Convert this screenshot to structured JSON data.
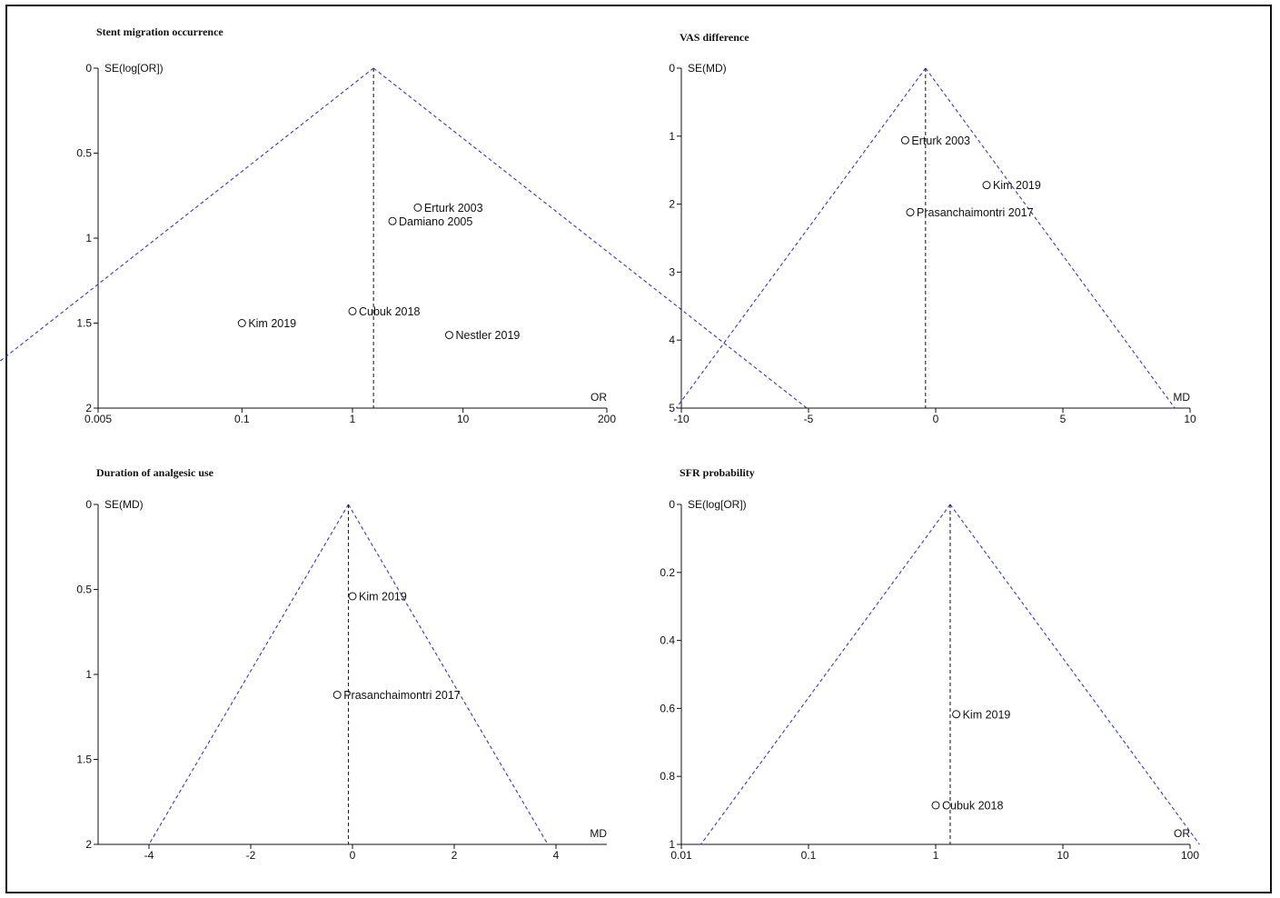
{
  "chart_data": [
    {
      "type": "scatter",
      "title": "Stent migration occurrence",
      "ylabel": "SE(log[OR])",
      "xlabel": "OR",
      "xscale": "log",
      "xlim": [
        0.005,
        200
      ],
      "ylim": [
        0,
        2
      ],
      "yinverted": true,
      "xticks": [
        "0.005",
        "0.1",
        "1",
        "10",
        "200"
      ],
      "xtick_values": [
        0.005,
        0.1,
        1,
        10,
        200
      ],
      "yticks": [
        "0",
        "0.5",
        "1",
        "1.5",
        "2"
      ],
      "ytick_values": [
        0,
        0.5,
        1,
        1.5,
        2
      ],
      "summary_effect": 1.55,
      "points": [
        {
          "label": "Erturk 2003",
          "x": 3.9,
          "y": 0.82
        },
        {
          "label": "Damiano 2005",
          "x": 2.3,
          "y": 0.9
        },
        {
          "label": "Cubuk 2018",
          "x": 1.0,
          "y": 1.43
        },
        {
          "label": "Kim 2019",
          "x": 0.1,
          "y": 1.5
        },
        {
          "label": "Nestler 2019",
          "x": 7.5,
          "y": 1.57
        }
      ],
      "colors": {
        "funnel": "#3a3ab4",
        "center": "#222222"
      }
    },
    {
      "type": "scatter",
      "title": "VAS difference",
      "ylabel": "SE(MD)",
      "xlabel": "MD",
      "xscale": "linear",
      "xlim": [
        -10,
        10
      ],
      "ylim": [
        0,
        5
      ],
      "yinverted": true,
      "xticks": [
        "-10",
        "-5",
        "0",
        "5",
        "10"
      ],
      "xtick_values": [
        -10,
        -5,
        0,
        5,
        10
      ],
      "yticks": [
        "0",
        "1",
        "2",
        "3",
        "4",
        "5"
      ],
      "ytick_values": [
        0,
        1,
        2,
        3,
        4,
        5
      ],
      "summary_effect": -0.4,
      "points": [
        {
          "label": "Erturk 2003",
          "x": -1.2,
          "y": 1.06
        },
        {
          "label": "Kim 2019",
          "x": 2.0,
          "y": 1.72
        },
        {
          "label": "Prasanchaimontri 2017",
          "x": -1.0,
          "y": 2.12
        }
      ],
      "colors": {
        "funnel": "#3a3ab4",
        "center": "#222222"
      }
    },
    {
      "type": "scatter",
      "title": "Duration of analgesic use",
      "ylabel": "SE(MD)",
      "xlabel": "MD",
      "xscale": "linear",
      "xlim": [
        -5,
        5
      ],
      "ylim": [
        0,
        2
      ],
      "yinverted": true,
      "xticks": [
        "-4",
        "-2",
        "0",
        "2",
        "4"
      ],
      "xtick_values": [
        -4,
        -2,
        0,
        2,
        4
      ],
      "yticks": [
        "0",
        "0.5",
        "1",
        "1.5",
        "2"
      ],
      "ytick_values": [
        0,
        0.5,
        1,
        1.5,
        2
      ],
      "summary_effect": -0.08,
      "points": [
        {
          "label": "Kim 2019",
          "x": 0.0,
          "y": 0.54
        },
        {
          "label": "Prasanchaimontri 2017",
          "x": -0.3,
          "y": 1.12
        }
      ],
      "colors": {
        "funnel": "#3a3ab4",
        "center": "#222222"
      }
    },
    {
      "type": "scatter",
      "title": "SFR probability",
      "ylabel": "SE(log[OR])",
      "xlabel": "OR",
      "xscale": "log",
      "xlim": [
        0.01,
        100
      ],
      "ylim": [
        0,
        1
      ],
      "yinverted": true,
      "xticks": [
        "0.01",
        "0.1",
        "1",
        "10",
        "100"
      ],
      "xtick_values": [
        0.01,
        0.1,
        1,
        10,
        100
      ],
      "yticks": [
        "0",
        "0.2",
        "0.4",
        "0.6",
        "0.8",
        "1"
      ],
      "ytick_values": [
        0,
        0.2,
        0.4,
        0.6,
        0.8,
        1
      ],
      "summary_effect": 1.3,
      "points": [
        {
          "label": "Kim 2019",
          "x": 1.45,
          "y": 0.617
        },
        {
          "label": "Cubuk 2018",
          "x": 1.0,
          "y": 0.885
        }
      ],
      "colors": {
        "funnel": "#3a3ab4",
        "center": "#222222"
      }
    }
  ]
}
